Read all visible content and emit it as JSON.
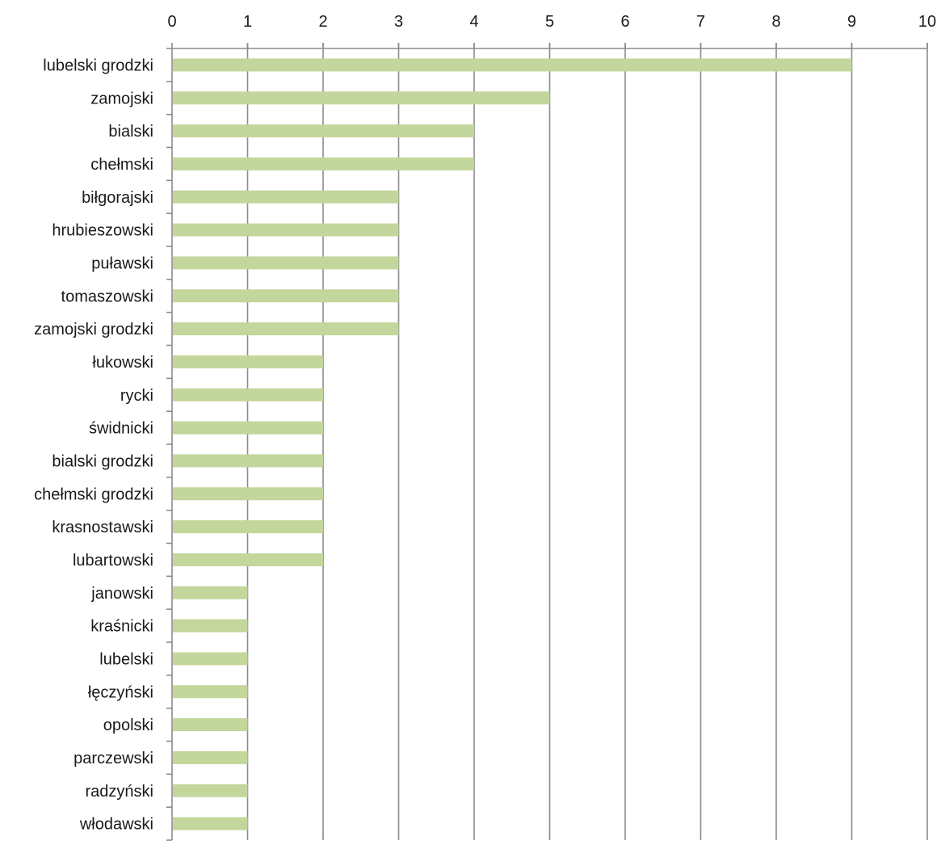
{
  "chart_data": {
    "type": "bar",
    "orientation": "horizontal",
    "categories": [
      "lubelski grodzki",
      "zamojski",
      "bialski",
      "chełmski",
      "biłgorajski",
      "hrubieszowski",
      "puławski",
      "tomaszowski",
      "zamojski grodzki",
      "łukowski",
      "rycki",
      "świdnicki",
      "bialski grodzki",
      "chełmski grodzki",
      "krasnostawski",
      "lubartowski",
      "janowski",
      "kraśnicki",
      "lubelski",
      "łęczyński",
      "opolski",
      "parczewski",
      "radzyński",
      "włodawski"
    ],
    "values": [
      9,
      5,
      4,
      4,
      3,
      3,
      3,
      3,
      3,
      2,
      2,
      2,
      2,
      2,
      2,
      2,
      1,
      1,
      1,
      1,
      1,
      1,
      1,
      1
    ],
    "xlim": [
      0,
      10
    ],
    "xticks": [
      "0",
      "1",
      "2",
      "3",
      "4",
      "5",
      "6",
      "7",
      "8",
      "9",
      "10"
    ],
    "x_axis_position": "top",
    "grid": true,
    "legend": "none",
    "title": "",
    "xlabel": "",
    "ylabel": "",
    "colors": {
      "bar": "#c3d69b",
      "grid": "#8c8c8c",
      "axis": "#8c8c8c",
      "text": "#1a1a1a"
    }
  }
}
